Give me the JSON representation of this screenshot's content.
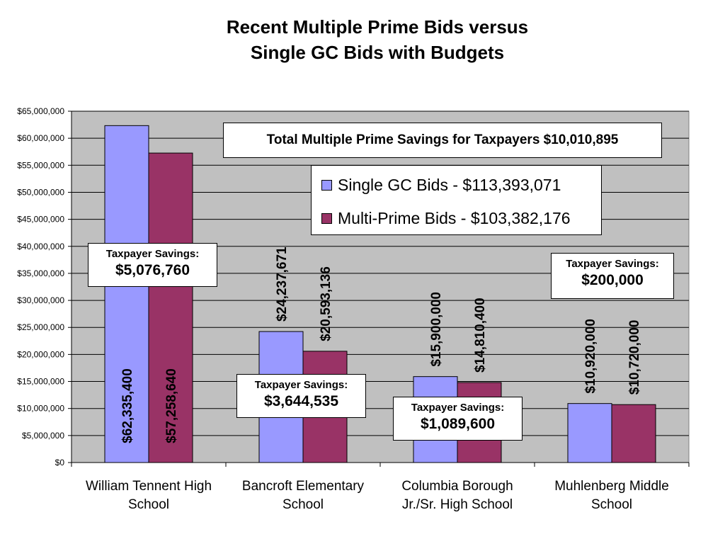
{
  "chart_data": {
    "type": "bar",
    "title_lines": [
      "Recent Multiple Prime Bids versus",
      "Single GC Bids with Budgets"
    ],
    "categories": [
      [
        "William Tennent High",
        "School"
      ],
      [
        "Bancroft Elementary",
        "School"
      ],
      [
        "Columbia Borough",
        "Jr./Sr. High School"
      ],
      [
        "Muhlenberg Middle",
        "School"
      ]
    ],
    "series": [
      {
        "name": "Single GC Bids - $113,393,071",
        "color": "#9999ff",
        "values": [
          62335400,
          24237671,
          15900000,
          10920000
        ],
        "value_labels": [
          "$62,335,400",
          "$24,237,671",
          "$15,900,000",
          "$10,920,000"
        ]
      },
      {
        "name": "Multi-Prime Bids - $103,382,176",
        "color": "#993366",
        "values": [
          57258640,
          20593136,
          14810400,
          10720000
        ],
        "value_labels": [
          "$57,258,640",
          "$20,593,136",
          "$14,810,400",
          "$10,720,000"
        ]
      }
    ],
    "ylim": [
      0,
      65000000
    ],
    "ytick_labels": [
      "$0",
      "$5,000,000",
      "$10,000,000",
      "$15,000,000",
      "$20,000,000",
      "$25,000,000",
      "$30,000,000",
      "$35,000,000",
      "$40,000,000",
      "$45,000,000",
      "$50,000,000",
      "$55,000,000",
      "$60,000,000",
      "$65,000,000"
    ],
    "plot_background": "#c0c0c0",
    "grid": true,
    "legend_position": "top-center",
    "annotations": {
      "total": "Total Multiple Prime Savings for Taxpayers $10,010,895",
      "savings_caption": "Taxpayer Savings:",
      "savings": [
        "$5,076,760",
        "$3,644,535",
        "$1,089,600",
        "$200,000"
      ]
    }
  }
}
